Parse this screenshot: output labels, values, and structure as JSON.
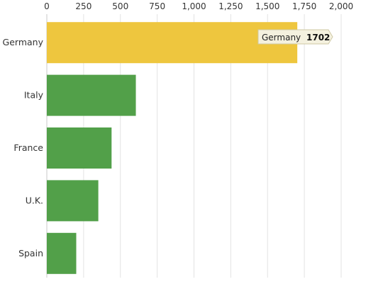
{
  "chart_data": {
    "type": "bar",
    "orientation": "horizontal",
    "categories": [
      "Germany",
      "Italy",
      "France",
      "U.K.",
      "Spain"
    ],
    "values": [
      1702,
      605,
      440,
      350,
      200
    ],
    "xlim": [
      0,
      2000
    ],
    "x_ticks": [
      0,
      250,
      500,
      750,
      1000,
      1250,
      1500,
      1750,
      2000
    ],
    "x_tick_labels": [
      "0",
      "250",
      "500",
      "750",
      "1,000",
      "1,250",
      "1,500",
      "1,750",
      "2,000"
    ],
    "x_axis_position": "top",
    "grid": true,
    "highlighted": "Germany",
    "colors": {
      "default_bar": "#52a049",
      "highlight_bar": "#eec63e"
    },
    "tooltip": {
      "category": "Germany",
      "value": "1702"
    }
  }
}
